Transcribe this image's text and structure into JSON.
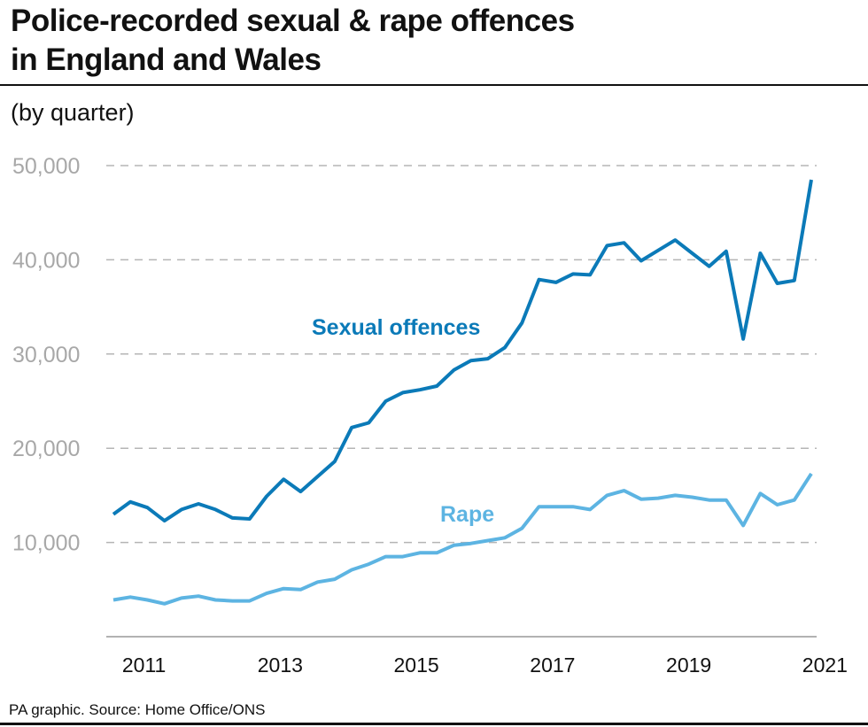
{
  "title_line1": "Police-recorded sexual & rape offences",
  "title_line2": "in England and Wales",
  "subtitle": "(by quarter)",
  "footer": "PA graphic. Source: Home Office/ONS",
  "colors": {
    "sexual": "#0b7ab8",
    "rape": "#5db4e2",
    "grid": "#b5b5b5",
    "ytick": "#a8a8a8"
  },
  "chart_data": {
    "type": "line",
    "title": "Police-recorded sexual & rape offences in England and Wales",
    "subtitle": "(by quarter)",
    "ylim": [
      0,
      50000
    ],
    "yticks": [
      10000,
      20000,
      30000,
      40000,
      50000
    ],
    "ytick_labels": [
      "10,000",
      "20,000",
      "30,000",
      "40,000",
      "50,000"
    ],
    "xticks": [
      2011,
      2013,
      2015,
      2017,
      2019,
      2021
    ],
    "xtick_labels": [
      "2011",
      "2013",
      "2015",
      "2017",
      "2019",
      "2021"
    ],
    "grid": "horizontal dashed",
    "x_first_quarter": "2010 Q3",
    "series": [
      {
        "name": "Sexual offences",
        "color": "#0b7ab8",
        "values": [
          13000,
          14300,
          13700,
          12300,
          13500,
          14100,
          13500,
          12600,
          12500,
          14900,
          16700,
          15400,
          17000,
          18600,
          22200,
          22700,
          25000,
          25900,
          26200,
          26600,
          28300,
          29300,
          29500,
          30700,
          33300,
          37900,
          37600,
          38500,
          38400,
          41500,
          41800,
          39900,
          41000,
          42100,
          40700,
          39300,
          40900,
          31600,
          40700,
          37500,
          37800,
          48500
        ]
      },
      {
        "name": "Rape",
        "color": "#5db4e2",
        "values": [
          3900,
          4200,
          3900,
          3500,
          4100,
          4300,
          3900,
          3800,
          3800,
          4600,
          5100,
          5000,
          5800,
          6100,
          7100,
          7700,
          8500,
          8500,
          8900,
          8900,
          9700,
          9900,
          10200,
          10500,
          11500,
          13800,
          13800,
          13800,
          13500,
          15000,
          15500,
          14600,
          14700,
          15000,
          14800,
          14500,
          14500,
          11800,
          15200,
          14000,
          14500,
          17300
        ]
      }
    ]
  }
}
